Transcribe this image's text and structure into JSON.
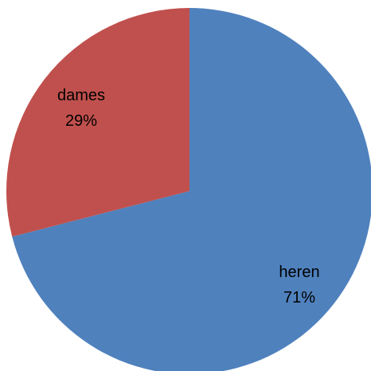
{
  "chart_data": {
    "type": "pie",
    "start_direction": "top",
    "direction": "clockwise",
    "slices": [
      {
        "label": "heren",
        "value": 71,
        "value_label": "71%",
        "color": "#4F81BD"
      },
      {
        "label": "dames",
        "value": 29,
        "value_label": "29%",
        "color": "#C0504D"
      }
    ]
  }
}
